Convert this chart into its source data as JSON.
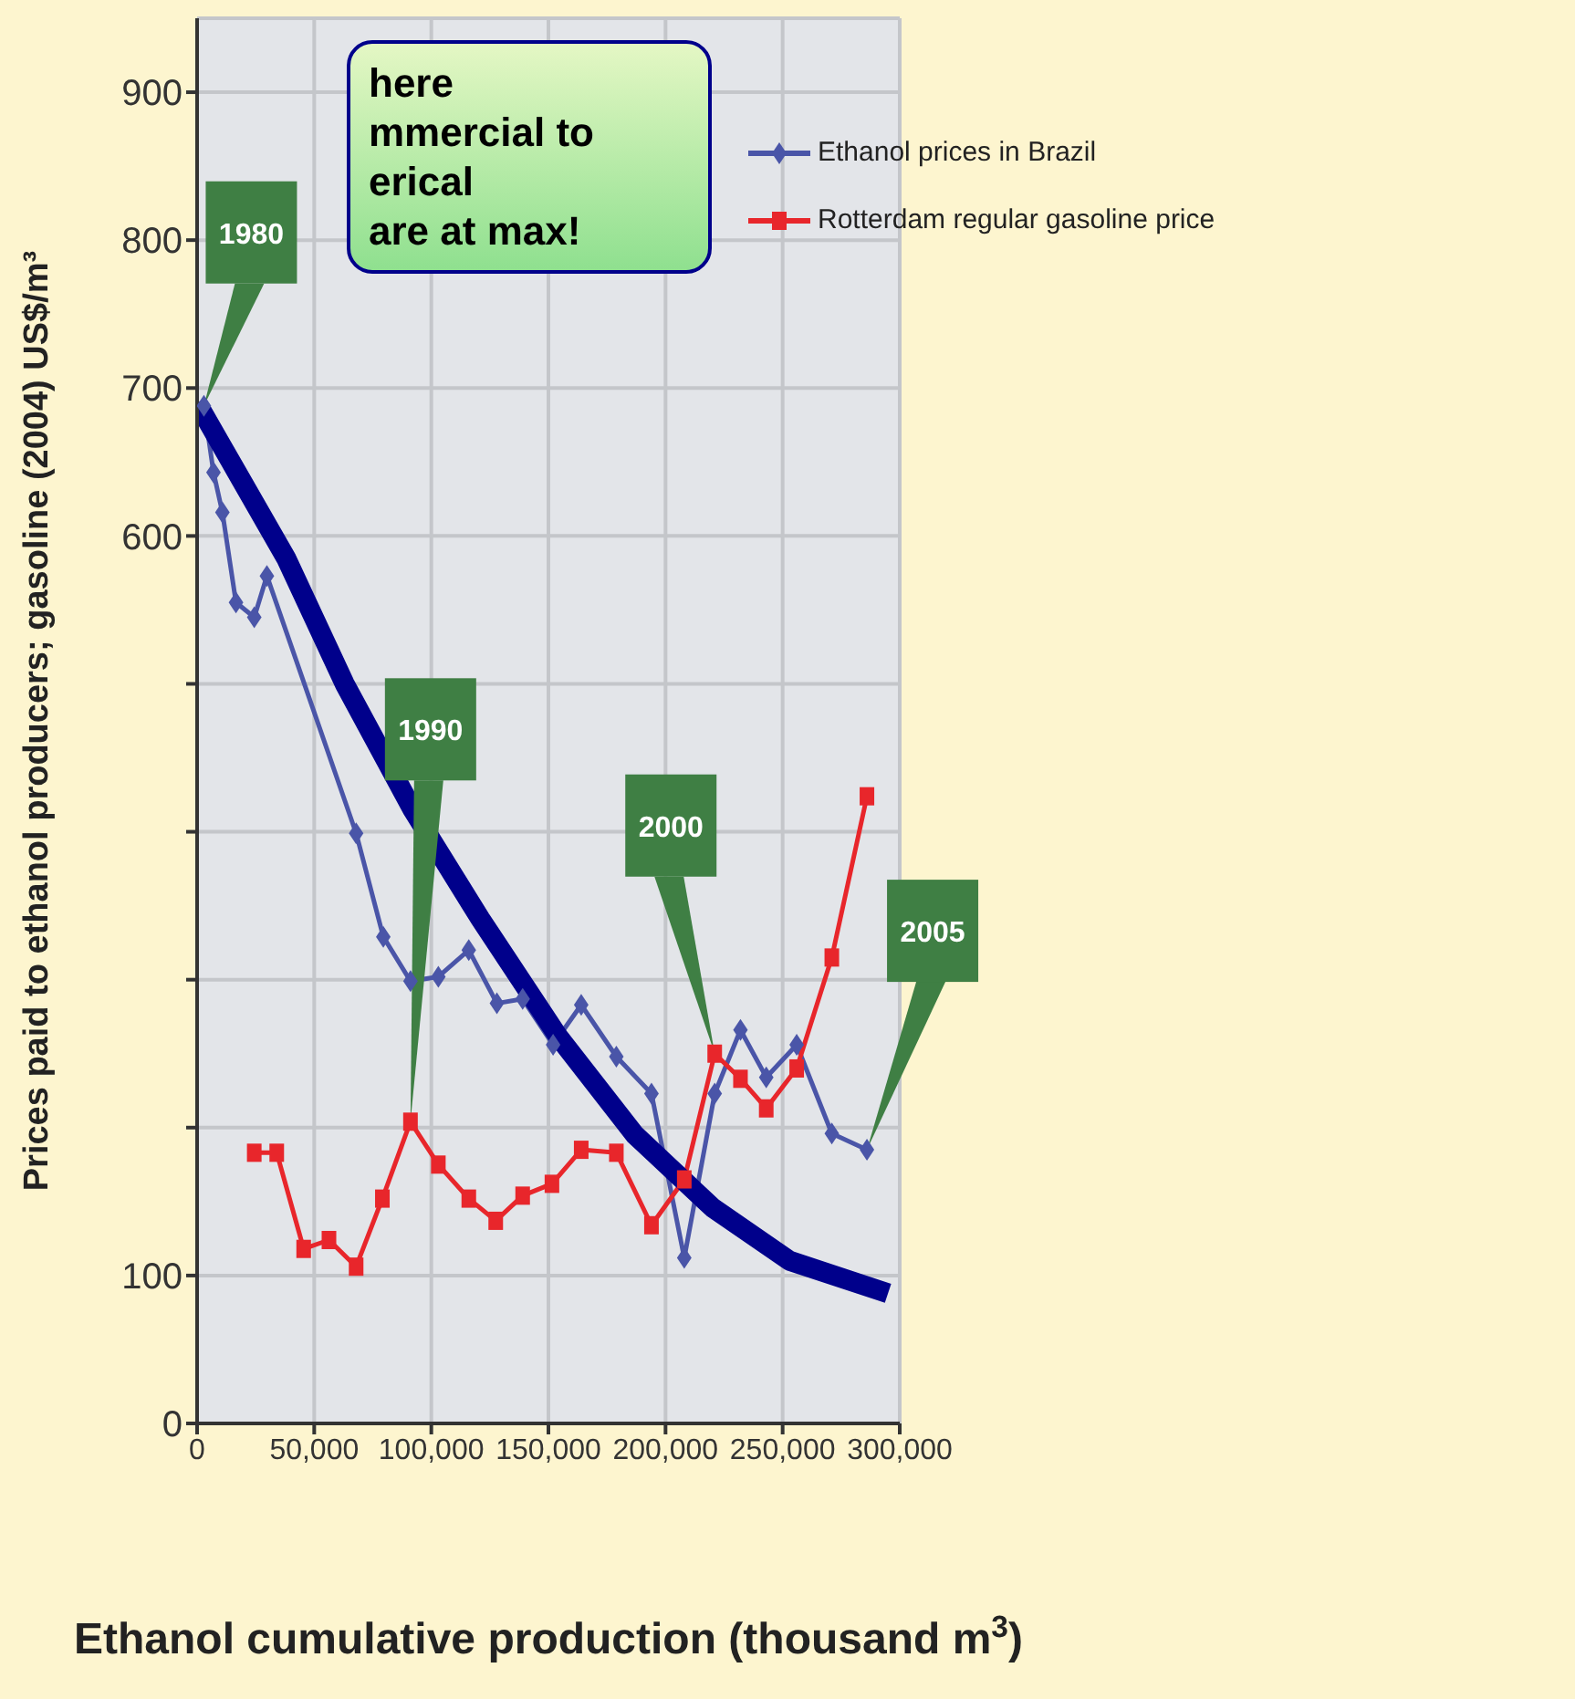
{
  "chart_data": {
    "type": "line",
    "xlabel": "Ethanol cumulative production (thousand m$^{3}$)",
    "ylabel": "Prices paid to ethanol producers; gasoline (2004) US$/m³",
    "xlim": [
      0,
      300000
    ],
    "ylim": [
      0,
      950
    ],
    "xticks": [
      0,
      {
        "value": 50000,
        "label": "50,000"
      },
      {
        "value": 100000,
        "label": "100,000"
      },
      {
        "value": 150000,
        "label": "150,000"
      },
      {
        "value": 200000,
        "label": "200,000"
      },
      {
        "value": 250000,
        "label": "250,000"
      },
      {
        "value": 300000,
        "label": "300,000"
      }
    ],
    "yticks": [
      0,
      100,
      {
        "value": 200,
        "label": null
      },
      {
        "value": 300,
        "label": null
      },
      {
        "value": 400,
        "label": null
      },
      {
        "value": 500,
        "label": null
      },
      600,
      700,
      800,
      900
    ],
    "grid": true,
    "legend": "top right",
    "series": [
      {
        "name": "Ethanol prices in Brazil",
        "color": "#4a55a8",
        "marker": "diamond",
        "x": [
          2900,
          7000,
          10800,
          16600,
          24400,
          29800,
          67900,
          79500,
          91100,
          103000,
          116000,
          128000,
          139000,
          152000,
          164000,
          179000,
          194000,
          208000,
          221000,
          232000,
          243000,
          256000,
          271000,
          286000
        ],
        "values": [
          688,
          643,
          616,
          555,
          545,
          573,
          399,
          329,
          299,
          302,
          320,
          284,
          287,
          256,
          283,
          248,
          223,
          112,
          223,
          266,
          234,
          256,
          196,
          185
        ]
      },
      {
        "name": "Rotterdam regular gasoline price",
        "color": "#e8262b",
        "marker": "square",
        "x": [
          24400,
          34000,
          45500,
          56300,
          67900,
          79100,
          91100,
          103000,
          116000,
          127500,
          139000,
          151500,
          164000,
          179000,
          194000,
          208000,
          221000,
          232000,
          243000,
          256000,
          271000,
          286000
        ],
        "values": [
          183,
          183,
          118,
          124,
          106,
          152,
          204,
          175,
          152,
          137,
          154,
          162,
          185,
          183,
          134,
          165,
          250,
          233,
          213,
          240,
          315,
          424
        ]
      },
      {
        "color": "#00008b",
        "marker": "none",
        "x": [
          0,
          38000,
          63000,
          92000,
          121000,
          154000,
          187000,
          220000,
          253000,
          295000
        ],
        "values": [
          690,
          585,
          500,
          415,
          341,
          262,
          195,
          146,
          110,
          88
        ]
      }
    ],
    "annotations": [
      "here\nmmercial to\nerical\nare at max!",
      {
        "text": "1980",
        "x": 2900,
        "y": 688
      },
      {
        "text": "1990",
        "x": 91100,
        "y": 204
      },
      {
        "text": "2000",
        "x": 221000,
        "y": 250
      },
      {
        "text": "2005",
        "x": 286000,
        "y": 185
      }
    ]
  }
}
